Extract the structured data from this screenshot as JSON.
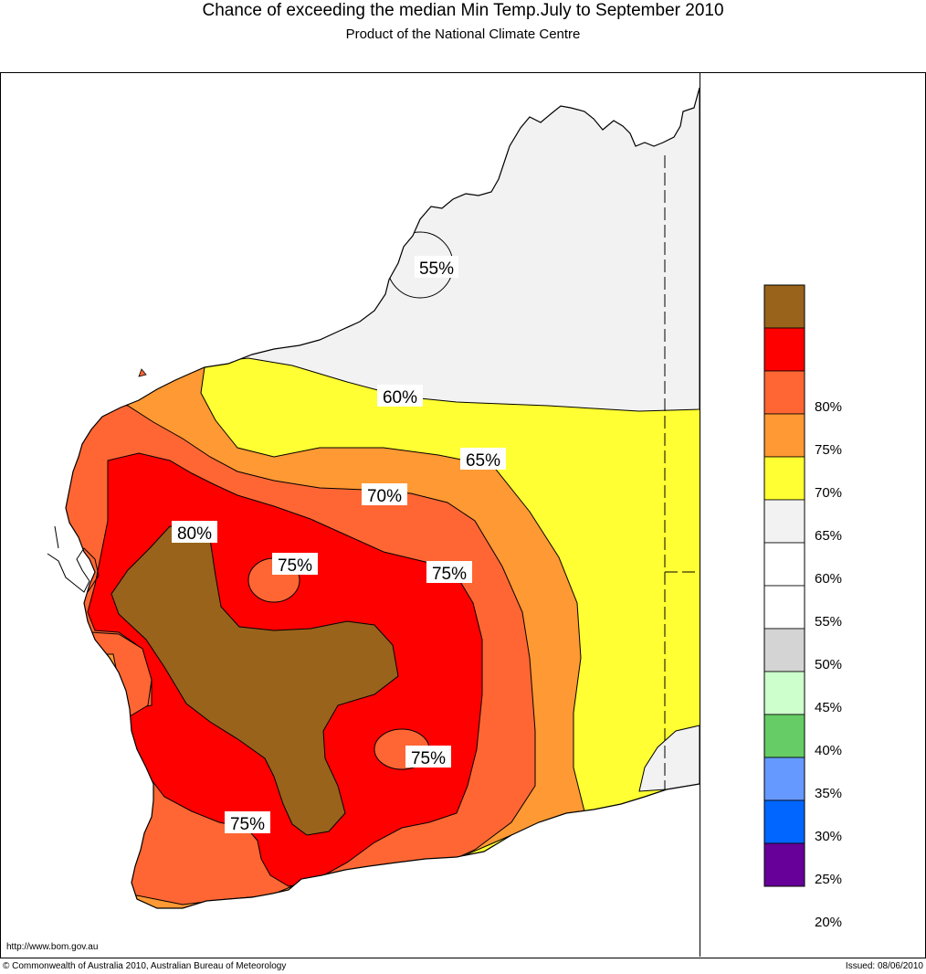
{
  "title": "Chance of exceeding the median Min Temp.July to September 2010",
  "subtitle": "Product of the National Climate Centre",
  "footer": {
    "url": "http://www.bom.gov.au",
    "copyright": "© Commonwealth of Australia 2010, Australian Bureau of Meteorology",
    "issued": "Issued: 08/06/2010"
  },
  "map_labels": [
    {
      "text": "55%"
    },
    {
      "text": "60%"
    },
    {
      "text": "65%"
    },
    {
      "text": "70%"
    },
    {
      "text": "80%"
    },
    {
      "text": "75%"
    },
    {
      "text": "75%"
    },
    {
      "text": "75%"
    },
    {
      "text": "75%"
    }
  ],
  "legend": {
    "items": [
      {
        "label": "",
        "color": "#99631b"
      },
      {
        "label": "80%",
        "color": "#ff0000"
      },
      {
        "label": "75%",
        "color": "#ff6633"
      },
      {
        "label": "70%",
        "color": "#ff9933"
      },
      {
        "label": "65%",
        "color": "#ffff33"
      },
      {
        "label": "60%",
        "color": "#f2f2f2"
      },
      {
        "label": "55%",
        "color": "#ffffff"
      },
      {
        "label": "50%",
        "color": "#ffffff"
      },
      {
        "label": "45%",
        "color": "#d4d4d4"
      },
      {
        "label": "40%",
        "color": "#ccffcc"
      },
      {
        "label": "35%",
        "color": "#66cc66"
      },
      {
        "label": "30%",
        "color": "#6699ff"
      },
      {
        "label": "25%",
        "color": "#0066ff"
      },
      {
        "label": "20%",
        "color": "#660099"
      }
    ]
  }
}
